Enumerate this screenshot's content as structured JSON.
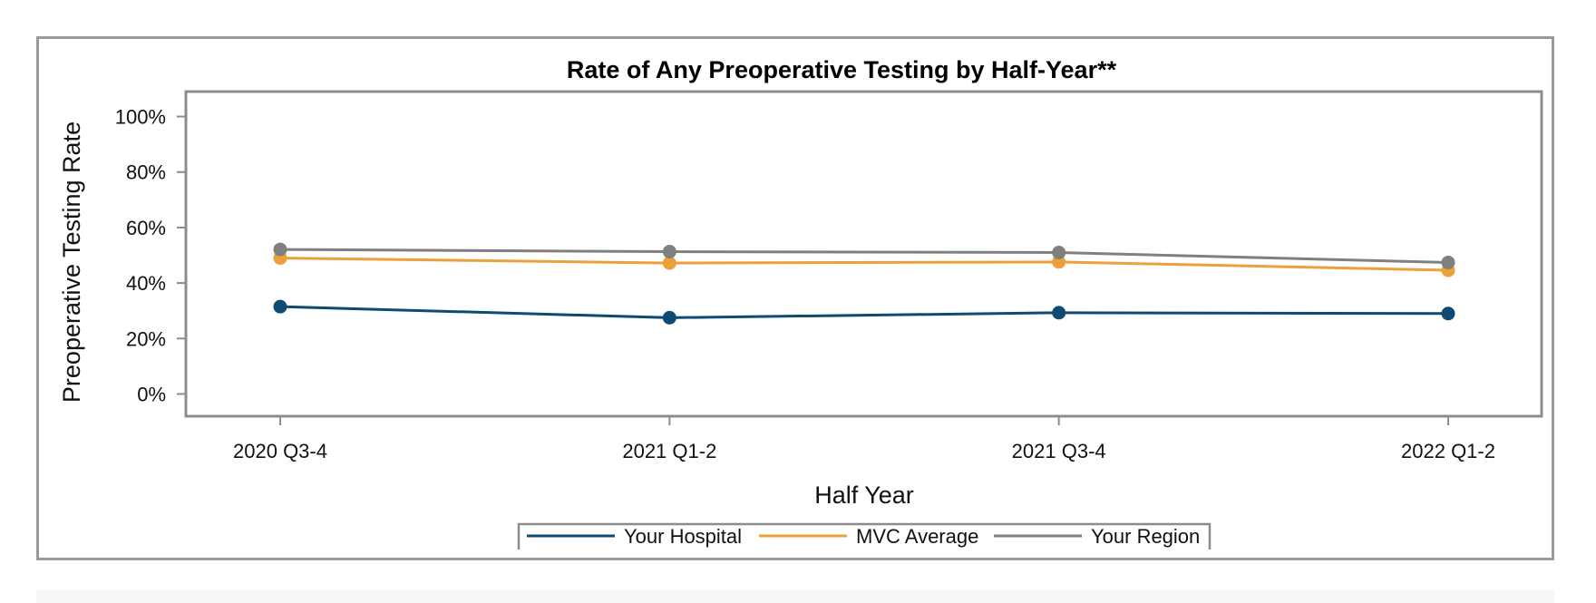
{
  "chart_data": {
    "type": "line",
    "title": "Rate of Any Preoperative Testing by Half-Year**",
    "xlabel": "Half Year",
    "ylabel": "Preoperative Testing Rate",
    "categories": [
      "2020 Q3-4",
      "2021 Q1-2",
      "2021 Q3-4",
      "2022 Q1-2"
    ],
    "y_ticks": [
      0,
      20,
      40,
      60,
      80,
      100
    ],
    "y_tick_labels": [
      "0%",
      "20%",
      "40%",
      "60%",
      "80%",
      "100%"
    ],
    "ylim": [
      -8,
      109
    ],
    "grid": false,
    "legend_position": "bottom",
    "series": [
      {
        "name": "Your Hospital",
        "color": "#0f4a72",
        "values": [
          31.5,
          27.5,
          29.3,
          29.0
        ]
      },
      {
        "name": "MVC Average",
        "color": "#eba139",
        "values": [
          49.0,
          47.2,
          47.6,
          44.6
        ]
      },
      {
        "name": "Your Region",
        "color": "#808080",
        "values": [
          52.1,
          51.3,
          51.0,
          47.4
        ]
      }
    ]
  }
}
